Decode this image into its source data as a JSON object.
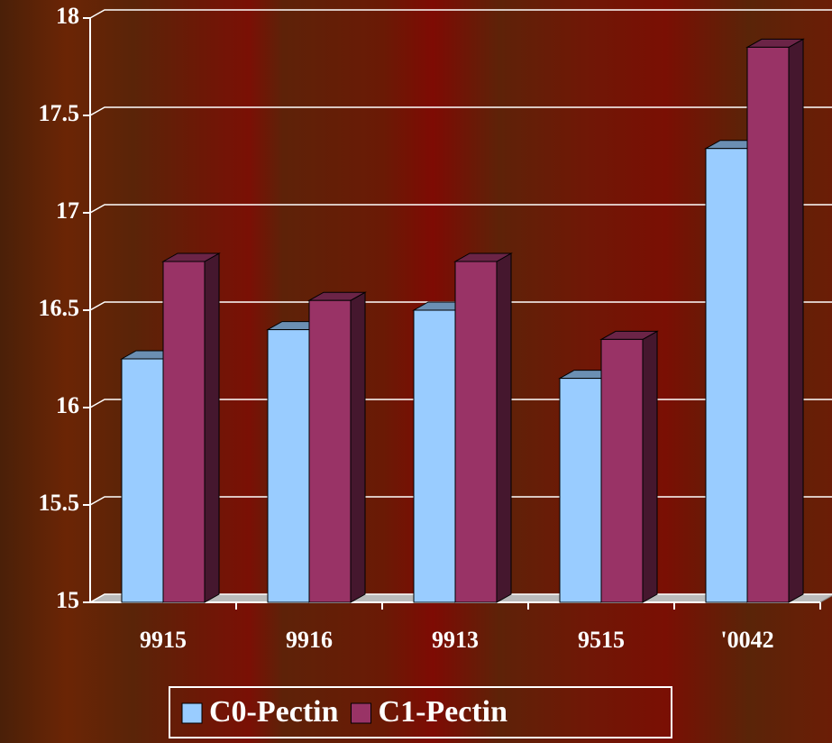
{
  "chart_data": {
    "type": "bar",
    "categories": [
      "9915",
      "9916",
      "9913",
      "9515",
      "'0042"
    ],
    "series": [
      {
        "name": "C0-Pectin",
        "color": "#99ccff",
        "values": [
          16.25,
          16.4,
          16.5,
          16.15,
          17.33
        ]
      },
      {
        "name": "C1-Pectin",
        "color": "#993366",
        "values": [
          16.75,
          16.55,
          16.75,
          16.35,
          17.85
        ]
      }
    ],
    "ylim": [
      15,
      18
    ],
    "yticks": [
      15,
      15.5,
      16,
      16.5,
      17,
      17.5,
      18
    ],
    "grid": true,
    "legend": "bottom"
  }
}
